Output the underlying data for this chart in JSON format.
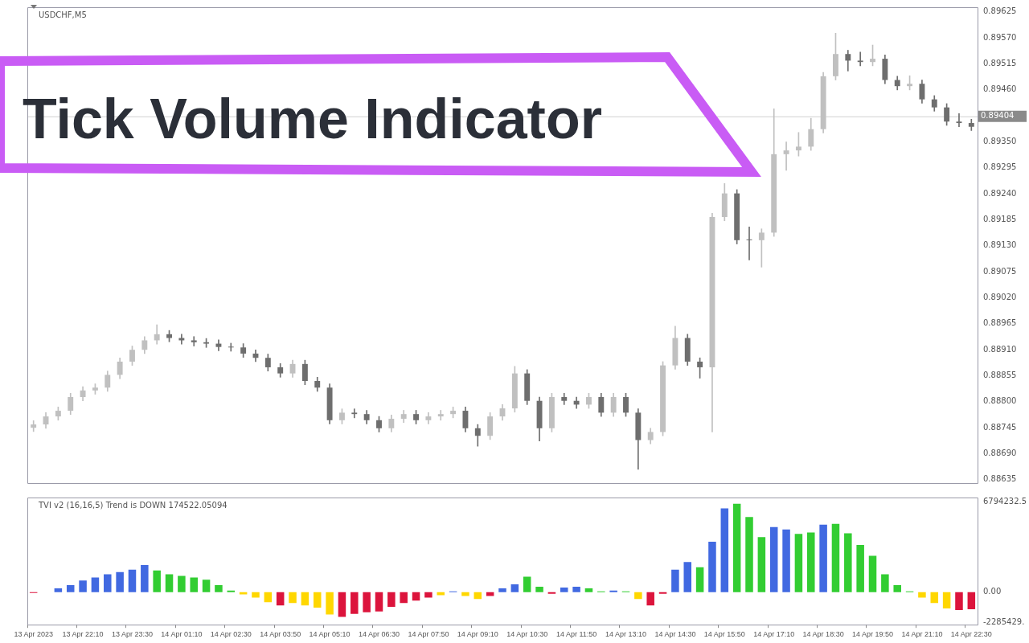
{
  "chart_data": [
    {
      "type": "candlestick",
      "title": "USDCHF,M5",
      "annotations": [
        "Tick Volume Indicator"
      ],
      "categories": [
        null,
        null,
        null,
        null,
        null,
        null,
        null,
        null,
        null,
        null,
        null,
        null,
        null,
        null,
        null,
        null,
        null,
        null,
        null,
        null,
        null,
        null,
        null,
        null,
        null,
        null,
        null,
        null,
        null,
        null,
        null,
        null,
        null,
        null,
        null,
        null,
        null,
        null,
        null,
        null,
        null,
        null,
        null,
        null,
        null,
        null,
        null,
        null,
        null,
        null,
        null,
        null,
        null,
        null,
        null,
        null,
        null,
        null,
        null,
        null,
        null,
        null,
        null,
        null,
        null,
        null,
        null,
        null,
        null,
        null,
        null,
        null,
        null,
        null,
        null,
        null,
        null
      ],
      "ohlc": [
        [
          0.88745,
          0.8876,
          0.88737,
          0.88752
        ],
        [
          0.88752,
          0.88777,
          0.88744,
          0.88769
        ],
        [
          0.88769,
          0.88789,
          0.88761,
          0.88781
        ],
        [
          0.88781,
          0.88818,
          0.88773,
          0.8881
        ],
        [
          0.8881,
          0.88832,
          0.88802,
          0.88824
        ],
        [
          0.88824,
          0.88838,
          0.88816,
          0.8883
        ],
        [
          0.8883,
          0.88865,
          0.88822,
          0.88857
        ],
        [
          0.88857,
          0.88893,
          0.88849,
          0.88885
        ],
        [
          0.88885,
          0.88918,
          0.88877,
          0.8891
        ],
        [
          0.8891,
          0.88938,
          0.88902,
          0.8893
        ],
        [
          0.8893,
          0.88963,
          0.88922,
          0.88943
        ],
        [
          0.88943,
          0.88951,
          0.88927,
          0.88935
        ],
        [
          0.88935,
          0.88943,
          0.88922,
          0.8893
        ],
        [
          0.8893,
          0.88938,
          0.88918,
          0.88926
        ],
        [
          0.88926,
          0.88934,
          0.88915,
          0.88923
        ],
        [
          0.88923,
          0.88931,
          0.88908,
          0.88916
        ],
        [
          0.88916,
          0.88924,
          0.88907,
          0.88915
        ],
        [
          0.88915,
          0.88923,
          0.88894,
          0.88902
        ],
        [
          0.88902,
          0.8891,
          0.88885,
          0.88893
        ],
        [
          0.88893,
          0.88901,
          0.88865,
          0.88873
        ],
        [
          0.88873,
          0.88881,
          0.88852,
          0.8886
        ],
        [
          0.8886,
          0.88888,
          0.88852,
          0.8888
        ],
        [
          0.8888,
          0.88888,
          0.88836,
          0.88844
        ],
        [
          0.88844,
          0.88852,
          0.88822,
          0.8883
        ],
        [
          0.8883,
          0.88838,
          0.88753,
          0.88761
        ],
        [
          0.88761,
          0.88785,
          0.88753,
          0.88777
        ],
        [
          0.88777,
          0.88785,
          0.88766,
          0.88774
        ],
        [
          0.88774,
          0.88782,
          0.88753,
          0.88761
        ],
        [
          0.88761,
          0.88769,
          0.88736,
          0.88744
        ],
        [
          0.88744,
          0.88772,
          0.88736,
          0.88764
        ],
        [
          0.88764,
          0.88782,
          0.88756,
          0.88774
        ],
        [
          0.88774,
          0.88782,
          0.88753,
          0.88761
        ],
        [
          0.88761,
          0.88777,
          0.88753,
          0.88769
        ],
        [
          0.88769,
          0.88782,
          0.88761,
          0.88774
        ],
        [
          0.88774,
          0.88789,
          0.88766,
          0.88781
        ],
        [
          0.88781,
          0.88789,
          0.88736,
          0.88744
        ],
        [
          0.88744,
          0.88752,
          0.88706,
          0.88728
        ],
        [
          0.88728,
          0.88777,
          0.8872,
          0.88769
        ],
        [
          0.88769,
          0.88794,
          0.88761,
          0.88786
        ],
        [
          0.88786,
          0.88875,
          0.88778,
          0.8886
        ],
        [
          0.8886,
          0.88868,
          0.88794,
          0.88802
        ],
        [
          0.88802,
          0.8881,
          0.88717,
          0.88744
        ],
        [
          0.88744,
          0.88818,
          0.88736,
          0.8881
        ],
        [
          0.8881,
          0.88818,
          0.88794,
          0.88802
        ],
        [
          0.88802,
          0.8881,
          0.88786,
          0.88794
        ],
        [
          0.88794,
          0.88818,
          0.88786,
          0.8881
        ],
        [
          0.8881,
          0.88818,
          0.88769,
          0.88777
        ],
        [
          0.88777,
          0.88818,
          0.88769,
          0.8881
        ],
        [
          0.8881,
          0.88818,
          0.88769,
          0.88777
        ],
        [
          0.88777,
          0.88785,
          0.88657,
          0.88719
        ],
        [
          0.88719,
          0.88744,
          0.88711,
          0.88736
        ],
        [
          0.88736,
          0.88885,
          0.88728,
          0.88877
        ],
        [
          0.88877,
          0.8896,
          0.88869,
          0.88935
        ],
        [
          0.88935,
          0.88943,
          0.88877,
          0.88885
        ],
        [
          0.88885,
          0.88893,
          0.8885,
          0.88873
        ],
        [
          0.88873,
          0.89199,
          0.88736,
          0.89191
        ],
        [
          0.89191,
          0.89262,
          0.89183,
          0.89241
        ],
        [
          0.89241,
          0.89249,
          0.89134,
          0.89142
        ],
        [
          0.89142,
          0.8917,
          0.891,
          0.89142
        ],
        [
          0.89142,
          0.89166,
          0.89085,
          0.89158
        ],
        [
          0.89158,
          0.8942,
          0.8915,
          0.89324
        ],
        [
          0.89324,
          0.8935,
          0.8929,
          0.89332
        ],
        [
          0.89332,
          0.8937,
          0.8932,
          0.8934
        ],
        [
          0.8934,
          0.894,
          0.89332,
          0.89377
        ],
        [
          0.89377,
          0.89497,
          0.89369,
          0.89489
        ],
        [
          0.89489,
          0.8958,
          0.89481,
          0.89536
        ],
        [
          0.89536,
          0.89544,
          0.895,
          0.89522
        ],
        [
          0.89522,
          0.8954,
          0.89511,
          0.89519
        ],
        [
          0.89519,
          0.89555,
          0.89511,
          0.89526
        ],
        [
          0.89526,
          0.89534,
          0.89473,
          0.89481
        ],
        [
          0.89481,
          0.89489,
          0.8946,
          0.89468
        ],
        [
          0.89468,
          0.8949,
          0.8946,
          0.89473
        ],
        [
          0.89473,
          0.89481,
          0.89432,
          0.8944
        ],
        [
          0.8944,
          0.89448,
          0.89415,
          0.89423
        ],
        [
          0.89423,
          0.89431,
          0.89385,
          0.89393
        ],
        [
          0.89393,
          0.8941,
          0.89382,
          0.8939
        ],
        [
          0.8939,
          0.89398,
          0.89374,
          0.89382
        ]
      ],
      "colors": [
        "#c0c0c0",
        "#c0c0c0",
        "#c0c0c0",
        "#c0c0c0",
        "#c0c0c0",
        "#c0c0c0",
        "#c0c0c0",
        "#c0c0c0",
        "#c0c0c0",
        "#c0c0c0",
        "#c0c0c0",
        "#6e6e6e",
        "#6e6e6e",
        "#6e6e6e",
        "#6e6e6e",
        "#6e6e6e",
        "#6e6e6e",
        "#6e6e6e",
        "#6e6e6e",
        "#6e6e6e",
        "#6e6e6e",
        "#c0c0c0",
        "#6e6e6e",
        "#6e6e6e",
        "#6e6e6e",
        "#c0c0c0",
        "#6e6e6e",
        "#6e6e6e",
        "#6e6e6e",
        "#c0c0c0",
        "#c0c0c0",
        "#6e6e6e",
        "#c0c0c0",
        "#c0c0c0",
        "#c0c0c0",
        "#6e6e6e",
        "#6e6e6e",
        "#c0c0c0",
        "#c0c0c0",
        "#c0c0c0",
        "#6e6e6e",
        "#6e6e6e",
        "#c0c0c0",
        "#6e6e6e",
        "#6e6e6e",
        "#c0c0c0",
        "#6e6e6e",
        "#c0c0c0",
        "#6e6e6e",
        "#6e6e6e",
        "#c0c0c0",
        "#c0c0c0",
        "#c0c0c0",
        "#6e6e6e",
        "#6e6e6e",
        "#c0c0c0",
        "#c0c0c0",
        "#6e6e6e",
        "#6e6e6e",
        "#c0c0c0",
        "#c0c0c0",
        "#c0c0c0",
        "#c0c0c0",
        "#c0c0c0",
        "#c0c0c0",
        "#c0c0c0",
        "#6e6e6e",
        "#6e6e6e",
        "#c0c0c0",
        "#6e6e6e",
        "#6e6e6e",
        "#c0c0c0",
        "#6e6e6e",
        "#6e6e6e",
        "#6e6e6e",
        "#6e6e6e",
        "#6e6e6e"
      ],
      "ylim": [
        0.88628,
        0.89635
      ],
      "yticks": [
        {
          "value": 0.88635,
          "label": "0.88635"
        },
        {
          "value": 0.8869,
          "label": "0.88690"
        },
        {
          "value": 0.88745,
          "label": "0.88745"
        },
        {
          "value": 0.888,
          "label": "0.88800"
        },
        {
          "value": 0.88855,
          "label": "0.88855"
        },
        {
          "value": 0.8891,
          "label": "0.88910"
        },
        {
          "value": 0.88965,
          "label": "0.88965"
        },
        {
          "value": 0.8902,
          "label": "0.89020"
        },
        {
          "value": 0.89075,
          "label": "0.89075"
        },
        {
          "value": 0.8913,
          "label": "0.89130"
        },
        {
          "value": 0.89185,
          "label": "0.89185"
        },
        {
          "value": 0.8924,
          "label": "0.89240"
        },
        {
          "value": 0.89295,
          "label": "0.89295"
        },
        {
          "value": 0.8935,
          "label": "0.89350"
        },
        {
          "value": 0.8946,
          "label": "0.89460"
        },
        {
          "value": 0.89515,
          "label": "0.89515"
        },
        {
          "value": 0.8957,
          "label": "0.89570"
        },
        {
          "value": 0.89625,
          "label": "0.89625"
        }
      ],
      "ref_lines": [
        {
          "axis": "y",
          "value": 0.89404,
          "label": "0.89404",
          "color": "#d0d0d0"
        }
      ],
      "tick_labels": "y"
    },
    {
      "type": "bar",
      "title": "TVI v2 (16,16,5) Trend is DOWN 174522.05094",
      "categories": [
        "13 Apr 2023",
        null,
        null,
        null,
        "13 Apr 22:10",
        null,
        null,
        null,
        "13 Apr 23:30",
        null,
        null,
        null,
        "14 Apr 01:10",
        null,
        null,
        null,
        "14 Apr 02:30",
        null,
        null,
        null,
        "14 Apr 03:50",
        null,
        null,
        null,
        "14 Apr 05:10",
        null,
        null,
        null,
        "14 Apr 06:30",
        null,
        null,
        null,
        "14 Apr 07:50",
        null,
        null,
        null,
        "14 Apr 09:10",
        null,
        null,
        null,
        "14 Apr 10:30",
        null,
        null,
        null,
        "14 Apr 11:50",
        null,
        null,
        null,
        "14 Apr 13:10",
        null,
        null,
        null,
        "14 Apr 14:30",
        null,
        null,
        null,
        "14 Apr 15:50",
        null,
        null,
        null,
        "14 Apr 17:10",
        null,
        null,
        null,
        "14 Apr 18:30",
        null,
        null,
        null,
        "14 Apr 19:50",
        null,
        null,
        null,
        "14 Apr 21:10",
        null,
        null,
        null,
        "14 Apr 22:30"
      ],
      "values": [
        -60000,
        0,
        290000,
        520000,
        870000,
        1100000,
        1340000,
        1510000,
        1680000,
        2030000,
        1630000,
        1340000,
        1220000,
        1100000,
        930000,
        520000,
        120000,
        -170000,
        -410000,
        -750000,
        -990000,
        -810000,
        -990000,
        -1160000,
        -1680000,
        -1860000,
        -1630000,
        -1510000,
        -1450000,
        -1100000,
        -810000,
        -640000,
        -410000,
        -230000,
        60000,
        -290000,
        -520000,
        -290000,
        290000,
        580000,
        1160000,
        410000,
        -120000,
        350000,
        410000,
        290000,
        60000,
        120000,
        60000,
        -520000,
        -990000,
        -120000,
        1680000,
        2260000,
        1860000,
        3770000,
        6270000,
        6620000,
        5630000,
        4120000,
        4880000,
        4700000,
        4360000,
        4470000,
        5050000,
        5110000,
        4410000,
        3540000,
        2730000,
        1340000,
        520000,
        60000,
        -410000,
        -810000,
        -1220000,
        -1340000,
        -1280000
      ],
      "colors": [
        "#dc143c",
        "#dc143c",
        "#4169e1",
        "#4169e1",
        "#4169e1",
        "#4169e1",
        "#4169e1",
        "#4169e1",
        "#4169e1",
        "#4169e1",
        "#32cd32",
        "#32cd32",
        "#32cd32",
        "#32cd32",
        "#32cd32",
        "#32cd32",
        "#32cd32",
        "#ffd700",
        "#ffd700",
        "#ffd700",
        "#dc143c",
        "#ffd700",
        "#ffd700",
        "#ffd700",
        "#ffd700",
        "#dc143c",
        "#dc143c",
        "#dc143c",
        "#dc143c",
        "#dc143c",
        "#dc143c",
        "#dc143c",
        "#dc143c",
        "#ffd700",
        "#4169e1",
        "#ffd700",
        "#ffd700",
        "#dc143c",
        "#4169e1",
        "#4169e1",
        "#32cd32",
        "#32cd32",
        "#dc143c",
        "#4169e1",
        "#4169e1",
        "#32cd32",
        "#32cd32",
        "#4169e1",
        "#32cd32",
        "#ffd700",
        "#dc143c",
        "#dc143c",
        "#4169e1",
        "#4169e1",
        "#32cd32",
        "#4169e1",
        "#4169e1",
        "#32cd32",
        "#32cd32",
        "#32cd32",
        "#4169e1",
        "#4169e1",
        "#32cd32",
        "#32cd32",
        "#4169e1",
        "#32cd32",
        "#32cd32",
        "#32cd32",
        "#32cd32",
        "#32cd32",
        "#32cd32",
        "#32cd32",
        "#ffd700",
        "#ffd700",
        "#ffd700",
        "#dc143c",
        "#dc143c"
      ],
      "ylim": [
        -2440000,
        7090000
      ],
      "yticks": [
        {
          "value": -2285429,
          "label": "-2285429."
        },
        {
          "value": 0,
          "label": "0.00"
        },
        {
          "value": 6794232.5,
          "label": "6794232.5"
        }
      ]
    }
  ]
}
